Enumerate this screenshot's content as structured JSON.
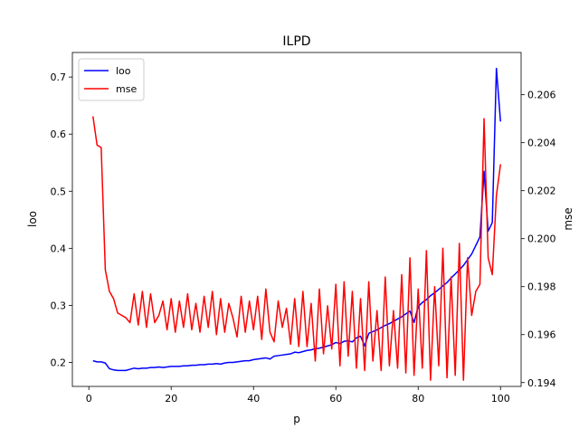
{
  "chart_data": {
    "type": "line",
    "title": "ILPD",
    "xlabel": "p",
    "ylabel": "loo",
    "y2label": "mse",
    "xlim": [
      -4,
      105
    ],
    "ylim": [
      0.158,
      0.743
    ],
    "y2lim": [
      0.19384,
      0.20776
    ],
    "xticks": [
      "0",
      "20",
      "40",
      "60",
      "80",
      "100"
    ],
    "yticks": [
      "0.2",
      "0.3",
      "0.4",
      "0.5",
      "0.6",
      "0.7"
    ],
    "y2ticks": [
      "0.194",
      "0.196",
      "0.198",
      "0.200",
      "0.202",
      "0.204",
      "0.206"
    ],
    "legend_position": "upper-left",
    "grid": false,
    "series": [
      {
        "name": "loo",
        "axis": "left",
        "color": "#0000ff",
        "x": [
          1,
          2,
          3,
          4,
          5,
          6,
          7,
          8,
          9,
          10,
          11,
          12,
          13,
          14,
          15,
          16,
          17,
          18,
          19,
          20,
          21,
          22,
          23,
          24,
          25,
          26,
          27,
          28,
          29,
          30,
          31,
          32,
          33,
          34,
          35,
          36,
          37,
          38,
          39,
          40,
          41,
          42,
          43,
          44,
          45,
          46,
          47,
          48,
          49,
          50,
          51,
          52,
          53,
          54,
          55,
          56,
          57,
          58,
          59,
          60,
          61,
          62,
          63,
          64,
          65,
          66,
          67,
          68,
          69,
          70,
          71,
          72,
          73,
          74,
          75,
          76,
          77,
          78,
          79,
          80,
          81,
          82,
          83,
          84,
          85,
          86,
          87,
          88,
          89,
          90,
          91,
          92,
          93,
          94,
          95,
          96,
          97,
          98,
          99,
          100
        ],
        "values": [
          0.203,
          0.201,
          0.201,
          0.199,
          0.189,
          0.187,
          0.186,
          0.186,
          0.186,
          0.188,
          0.19,
          0.189,
          0.19,
          0.19,
          0.191,
          0.191,
          0.192,
          0.191,
          0.192,
          0.193,
          0.193,
          0.193,
          0.194,
          0.194,
          0.195,
          0.195,
          0.196,
          0.196,
          0.197,
          0.197,
          0.198,
          0.197,
          0.199,
          0.2,
          0.2,
          0.201,
          0.202,
          0.203,
          0.203,
          0.205,
          0.206,
          0.207,
          0.208,
          0.206,
          0.211,
          0.212,
          0.213,
          0.214,
          0.215,
          0.218,
          0.217,
          0.219,
          0.221,
          0.222,
          0.224,
          0.225,
          0.227,
          0.229,
          0.231,
          0.235,
          0.233,
          0.237,
          0.238,
          0.236,
          0.243,
          0.246,
          0.229,
          0.251,
          0.254,
          0.257,
          0.261,
          0.265,
          0.268,
          0.272,
          0.276,
          0.28,
          0.285,
          0.29,
          0.27,
          0.298,
          0.305,
          0.31,
          0.317,
          0.322,
          0.328,
          0.334,
          0.34,
          0.348,
          0.355,
          0.362,
          0.37,
          0.38,
          0.39,
          0.405,
          0.42,
          0.535,
          0.43,
          0.445,
          0.715,
          0.622
        ]
      },
      {
        "name": "mse",
        "axis": "right",
        "color": "#ff0000",
        "x": [
          1,
          2,
          3,
          4,
          5,
          6,
          7,
          8,
          9,
          10,
          11,
          12,
          13,
          14,
          15,
          16,
          17,
          18,
          19,
          20,
          21,
          22,
          23,
          24,
          25,
          26,
          27,
          28,
          29,
          30,
          31,
          32,
          33,
          34,
          35,
          36,
          37,
          38,
          39,
          40,
          41,
          42,
          43,
          44,
          45,
          46,
          47,
          48,
          49,
          50,
          51,
          52,
          53,
          54,
          55,
          56,
          57,
          58,
          59,
          60,
          61,
          62,
          63,
          64,
          65,
          66,
          67,
          68,
          69,
          70,
          71,
          72,
          73,
          74,
          75,
          76,
          77,
          78,
          79,
          80,
          81,
          82,
          83,
          84,
          85,
          86,
          87,
          88,
          89,
          90,
          91,
          92,
          93,
          94,
          95,
          96,
          97,
          98,
          99,
          100
        ],
        "values": [
          0.2051,
          0.2039,
          0.2038,
          0.1987,
          0.1978,
          0.1975,
          0.1969,
          0.1968,
          0.1967,
          0.1965,
          0.1977,
          0.1964,
          0.1978,
          0.1963,
          0.1977,
          0.1965,
          0.1968,
          0.1974,
          0.1962,
          0.1975,
          0.1961,
          0.1974,
          0.1963,
          0.1977,
          0.1962,
          0.1973,
          0.1961,
          0.1976,
          0.1963,
          0.1978,
          0.196,
          0.1975,
          0.1961,
          0.1973,
          0.1967,
          0.1959,
          0.1976,
          0.1961,
          0.1974,
          0.1962,
          0.1976,
          0.1958,
          0.1979,
          0.1961,
          0.1957,
          0.1974,
          0.1963,
          0.1971,
          0.1956,
          0.1975,
          0.1955,
          0.1978,
          0.1955,
          0.1973,
          0.1949,
          0.1979,
          0.1952,
          0.1972,
          0.1954,
          0.1981,
          0.1947,
          0.1982,
          0.1951,
          0.1978,
          0.1946,
          0.1975,
          0.1945,
          0.1982,
          0.1949,
          0.197,
          0.1945,
          0.1984,
          0.1947,
          0.197,
          0.1946,
          0.1985,
          0.1944,
          0.1992,
          0.1943,
          0.1979,
          0.1946,
          0.1995,
          0.1941,
          0.198,
          0.1947,
          0.1996,
          0.1942,
          0.1984,
          0.1943,
          0.1998,
          0.1941,
          0.1992,
          0.1968,
          0.1978,
          0.1981,
          0.205,
          0.1992,
          0.1985,
          0.2018,
          0.2031
        ]
      }
    ]
  }
}
